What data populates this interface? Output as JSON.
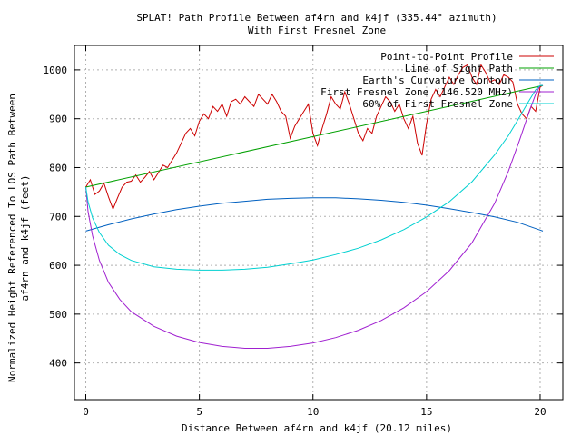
{
  "chart_data": {
    "type": "line",
    "title": "SPLAT! Path Profile Between af4rn and k4jf (335.44° azimuth)",
    "subtitle": "With First Fresnel Zone",
    "xlabel": "Distance Between af4rn and k4jf (20.12 miles)",
    "ylabel_line1": "Normalized Height Referenced To LOS Path Between",
    "ylabel_line2": "af4rn and k4jf (feet)",
    "xlim": [
      -0.5,
      21
    ],
    "ylim": [
      325,
      1050
    ],
    "xticks": [
      0,
      5,
      10,
      15,
      20
    ],
    "yticks": [
      400,
      500,
      600,
      700,
      800,
      900,
      1000
    ],
    "grid": true,
    "legend_position": "top-right",
    "series": [
      {
        "name": "Point-to-Point Profile",
        "color": "#cc0000",
        "x": [
          0,
          0.2,
          0.4,
          0.6,
          0.8,
          1.0,
          1.2,
          1.4,
          1.6,
          1.8,
          2.0,
          2.2,
          2.4,
          2.6,
          2.8,
          3.0,
          3.2,
          3.4,
          3.6,
          3.8,
          4.0,
          4.2,
          4.4,
          4.6,
          4.8,
          5.0,
          5.2,
          5.4,
          5.6,
          5.8,
          6.0,
          6.2,
          6.4,
          6.6,
          6.8,
          7.0,
          7.2,
          7.4,
          7.6,
          7.8,
          8.0,
          8.2,
          8.4,
          8.6,
          8.8,
          9.0,
          9.2,
          9.4,
          9.6,
          9.8,
          10.0,
          10.2,
          10.4,
          10.6,
          10.8,
          11.0,
          11.2,
          11.4,
          11.6,
          11.8,
          12.0,
          12.2,
          12.4,
          12.6,
          12.8,
          13.0,
          13.2,
          13.4,
          13.6,
          13.8,
          14.0,
          14.2,
          14.4,
          14.6,
          14.8,
          15.0,
          15.2,
          15.4,
          15.6,
          15.8,
          16.0,
          16.2,
          16.4,
          16.6,
          16.8,
          17.0,
          17.2,
          17.4,
          17.6,
          17.8,
          18.0,
          18.2,
          18.4,
          18.6,
          18.8,
          19.0,
          19.2,
          19.4,
          19.6,
          19.8,
          20.0,
          20.12
        ],
        "y": [
          760,
          775,
          745,
          752,
          768,
          740,
          715,
          738,
          760,
          770,
          772,
          785,
          770,
          780,
          792,
          775,
          790,
          805,
          800,
          815,
          830,
          850,
          870,
          880,
          865,
          895,
          910,
          900,
          925,
          915,
          930,
          905,
          935,
          940,
          930,
          945,
          935,
          925,
          950,
          940,
          930,
          950,
          935,
          915,
          905,
          860,
          885,
          900,
          915,
          930,
          870,
          845,
          880,
          910,
          945,
          930,
          920,
          955,
          930,
          900,
          870,
          855,
          880,
          870,
          905,
          925,
          945,
          935,
          915,
          930,
          900,
          880,
          905,
          850,
          825,
          890,
          940,
          960,
          945,
          965,
          985,
          970,
          990,
          1005,
          1010,
          985,
          970,
          1010,
          995,
          975,
          980,
          970,
          990,
          985,
          975,
          930,
          910,
          900,
          925,
          915,
          965,
          968
        ]
      },
      {
        "name": "Line of Sight Path",
        "color": "#00a000",
        "x": [
          0,
          20.12
        ],
        "y": [
          760,
          968
        ]
      },
      {
        "name": "Earth's Curvature Contour",
        "color": "#0060c0",
        "x": [
          0,
          1,
          2,
          3,
          4,
          5,
          6,
          7,
          8,
          9,
          10,
          11,
          12,
          13,
          14,
          15,
          16,
          17,
          18,
          19,
          20,
          20.12
        ],
        "y": [
          670,
          683,
          695,
          705,
          714,
          721,
          727,
          731,
          735,
          737,
          738,
          738,
          736,
          733,
          729,
          723,
          716,
          708,
          699,
          688,
          672,
          670
        ]
      },
      {
        "name": "First Fresnel Zone (146.520 MHz)",
        "color": "#a020d0",
        "x": [
          0,
          0.1,
          0.3,
          0.6,
          1,
          1.5,
          2,
          3,
          4,
          5,
          6,
          7,
          8,
          9,
          10,
          11,
          12,
          13,
          14,
          15,
          16,
          17,
          18,
          18.6,
          19.1,
          19.5,
          19.8,
          20,
          20.12
        ],
        "y": [
          760,
          710,
          660,
          610,
          565,
          530,
          505,
          475,
          455,
          442,
          434,
          430,
          430,
          434,
          441,
          452,
          467,
          487,
          513,
          546,
          589,
          646,
          727,
          792,
          857,
          912,
          950,
          968,
          968
        ]
      },
      {
        "name": "60% of First Fresnel Zone",
        "color": "#00d0d0",
        "x": [
          0,
          0.1,
          0.3,
          0.6,
          1,
          1.5,
          2,
          3,
          4,
          5,
          6,
          7,
          8,
          9,
          10,
          11,
          12,
          13,
          14,
          15,
          16,
          17,
          18,
          18.6,
          19.1,
          19.5,
          19.8,
          20,
          20.12
        ],
        "y": [
          760,
          730,
          697,
          667,
          641,
          622,
          610,
          597,
          592,
          590,
          590,
          592,
          596,
          603,
          611,
          622,
          635,
          652,
          673,
          699,
          730,
          771,
          826,
          865,
          904,
          936,
          959,
          968,
          968
        ]
      }
    ]
  }
}
